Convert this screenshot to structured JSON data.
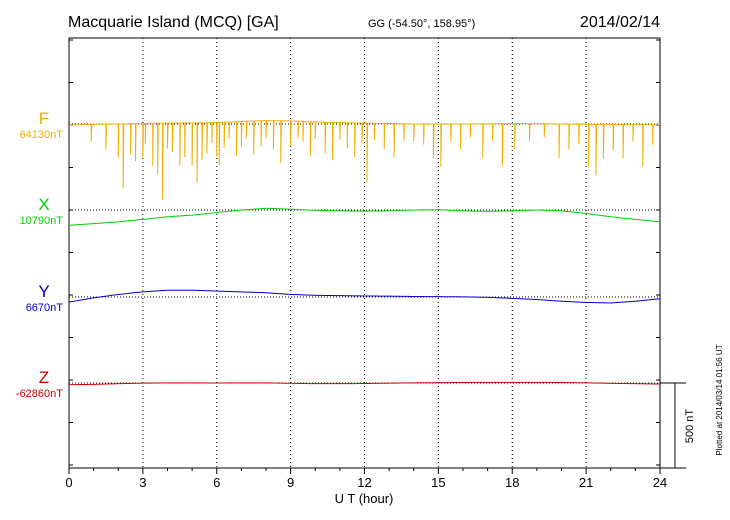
{
  "header": {
    "station": "Macquarie Island (MCQ)  [GA]",
    "coords": "GG (-54.50°, 158.95°)",
    "date": "2014/02/14"
  },
  "plotted_note": "Plotted at 2014/03/14 01:56 UT",
  "chart_data": {
    "type": "line",
    "xlabel": "U T (hour)",
    "xlim": [
      0,
      24
    ],
    "x_ticks": [
      0,
      3,
      6,
      9,
      12,
      15,
      18,
      21,
      24
    ],
    "scale_bar": {
      "label": "500 nT",
      "value_nT": 500
    },
    "grid": "dotted vertical lines every 3 h; dotted baseline per series",
    "series": [
      {
        "name": "F",
        "baseline_label": "64130nT",
        "baseline_nT": 64130,
        "color": "#f0b000",
        "x": [
          0,
          1,
          2,
          3,
          4,
          5,
          6,
          7,
          8,
          9,
          10,
          11,
          12,
          13,
          14,
          15,
          16,
          17,
          18,
          19,
          20,
          21,
          22,
          23,
          24
        ],
        "y": [
          64125,
          64128,
          64130,
          64133,
          64135,
          64136,
          64138,
          64145,
          64150,
          64148,
          64142,
          64138,
          64135,
          64133,
          64130,
          64129,
          64130,
          64131,
          64133,
          64132,
          64130,
          64128,
          64127,
          64126,
          64126
        ],
        "dip_times": [
          0.9,
          1.5,
          2.0,
          2.2,
          2.5,
          2.7,
          3.0,
          3.1,
          3.4,
          3.6,
          3.8,
          4.0,
          4.2,
          4.5,
          4.7,
          5.0,
          5.2,
          5.4,
          5.6,
          5.8,
          6.0,
          6.1,
          6.3,
          6.5,
          6.8,
          7.0,
          7.2,
          7.5,
          7.8,
          8.0,
          8.3,
          8.6,
          9.0,
          9.3,
          9.5,
          9.8,
          10.0,
          10.4,
          10.7,
          11.0,
          11.3,
          11.6,
          11.9,
          12.1,
          12.4,
          12.8,
          13.2,
          13.6,
          14.0,
          14.4,
          14.8,
          15.1,
          15.5,
          15.9,
          16.3,
          16.8,
          17.2,
          17.6,
          18.1,
          18.7,
          19.3,
          19.9,
          20.3,
          20.7,
          21.1,
          21.4,
          21.7,
          22.1,
          22.5,
          22.9,
          23.3,
          23.7
        ],
        "dip_depths_nT": [
          100,
          150,
          200,
          380,
          180,
          220,
          200,
          120,
          250,
          300,
          450,
          150,
          170,
          250,
          200,
          250,
          350,
          220,
          180,
          120,
          200,
          250,
          150,
          100,
          200,
          150,
          100,
          200,
          150,
          100,
          170,
          250,
          150,
          100,
          120,
          200,
          100,
          180,
          220,
          100,
          150,
          200,
          120,
          350,
          100,
          150,
          200,
          100,
          100,
          120,
          200,
          250,
          100,
          150,
          80,
          200,
          100,
          250,
          150,
          100,
          80,
          200,
          150,
          120,
          250,
          300,
          200,
          150,
          200,
          100,
          250,
          120
        ]
      },
      {
        "name": "X",
        "baseline_label": "10790nT",
        "baseline_nT": 10790,
        "color": "#00d000",
        "x": [
          0,
          1,
          2,
          3,
          4,
          5,
          6,
          7,
          8,
          9,
          10,
          11,
          12,
          13,
          14,
          15,
          16,
          17,
          18,
          19,
          20,
          21,
          22,
          23,
          24
        ],
        "y": [
          10700,
          10710,
          10720,
          10735,
          10750,
          10760,
          10775,
          10790,
          10800,
          10795,
          10788,
          10785,
          10783,
          10785,
          10790,
          10792,
          10785,
          10782,
          10785,
          10790,
          10785,
          10770,
          10750,
          10735,
          10720
        ]
      },
      {
        "name": "Y",
        "baseline_label": "6670nT",
        "baseline_nT": 6670,
        "color": "#0000d0",
        "x": [
          0,
          1,
          2,
          3,
          4,
          5,
          6,
          7,
          8,
          9,
          10,
          11,
          12,
          13,
          14,
          15,
          16,
          17,
          18,
          19,
          20,
          21,
          22,
          23,
          24
        ],
        "y": [
          6640,
          6665,
          6685,
          6700,
          6710,
          6710,
          6705,
          6700,
          6695,
          6685,
          6680,
          6678,
          6676,
          6675,
          6673,
          6672,
          6671,
          6668,
          6662,
          6655,
          6645,
          6638,
          6635,
          6645,
          6660
        ]
      },
      {
        "name": "Z",
        "baseline_label": "-62860nT",
        "baseline_nT": -62860,
        "color": "#d00000",
        "x": [
          0,
          1,
          2,
          3,
          4,
          5,
          6,
          7,
          8,
          9,
          10,
          11,
          12,
          13,
          14,
          15,
          16,
          17,
          18,
          19,
          20,
          21,
          22,
          23,
          24
        ],
        "y": [
          -62870,
          -62868,
          -62864,
          -62861,
          -62859,
          -62859,
          -62860,
          -62859,
          -62859,
          -62862,
          -62864,
          -62864,
          -62863,
          -62861,
          -62859,
          -62858,
          -62857,
          -62856,
          -62856,
          -62856,
          -62857,
          -62859,
          -62862,
          -62864,
          -62866
        ]
      }
    ]
  }
}
